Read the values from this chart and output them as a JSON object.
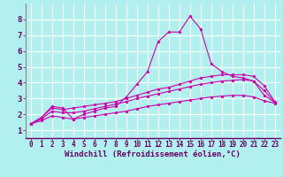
{
  "background_color": "#b2f0f0",
  "grid_color": "#ffffff",
  "line_color": "#cc00aa",
  "marker": "*",
  "xlabel": "Windchill (Refroidissement éolien,°C)",
  "xlabel_fontsize": 6.5,
  "xtick_fontsize": 5.5,
  "ytick_fontsize": 6.5,
  "xlim": [
    -0.5,
    23.5
  ],
  "ylim": [
    0.5,
    9.0
  ],
  "yticks": [
    1,
    2,
    3,
    4,
    5,
    6,
    7,
    8
  ],
  "xticks": [
    0,
    1,
    2,
    3,
    4,
    5,
    6,
    7,
    8,
    9,
    10,
    11,
    12,
    13,
    14,
    15,
    16,
    17,
    18,
    19,
    20,
    21,
    22,
    23
  ],
  "series": [
    {
      "x": [
        0,
        1,
        2,
        3,
        4,
        5,
        6,
        7,
        8,
        9,
        10,
        11,
        12,
        13,
        14,
        15,
        16,
        17,
        18,
        19,
        20,
        21,
        22,
        23
      ],
      "y": [
        1.4,
        1.8,
        2.5,
        2.4,
        1.7,
        2.0,
        2.2,
        2.4,
        2.5,
        3.1,
        3.9,
        4.7,
        6.6,
        7.2,
        7.2,
        8.2,
        7.4,
        5.2,
        4.7,
        4.4,
        4.3,
        4.1,
        3.2,
        2.75
      ]
    },
    {
      "x": [
        0,
        1,
        2,
        3,
        4,
        5,
        6,
        7,
        8,
        9,
        10,
        11,
        12,
        13,
        14,
        15,
        16,
        17,
        18,
        19,
        20,
        21,
        22,
        23
      ],
      "y": [
        1.4,
        1.8,
        2.4,
        2.3,
        2.4,
        2.5,
        2.6,
        2.7,
        2.8,
        3.0,
        3.2,
        3.4,
        3.6,
        3.7,
        3.9,
        4.1,
        4.3,
        4.4,
        4.5,
        4.5,
        4.5,
        4.4,
        3.8,
        2.8
      ]
    },
    {
      "x": [
        0,
        1,
        2,
        3,
        4,
        5,
        6,
        7,
        8,
        9,
        10,
        11,
        12,
        13,
        14,
        15,
        16,
        17,
        18,
        19,
        20,
        21,
        22,
        23
      ],
      "y": [
        1.4,
        1.7,
        2.2,
        2.1,
        2.1,
        2.2,
        2.35,
        2.5,
        2.65,
        2.8,
        3.0,
        3.15,
        3.3,
        3.45,
        3.6,
        3.75,
        3.9,
        4.0,
        4.1,
        4.15,
        4.2,
        4.1,
        3.5,
        2.75
      ]
    },
    {
      "x": [
        0,
        1,
        2,
        3,
        4,
        5,
        6,
        7,
        8,
        9,
        10,
        11,
        12,
        13,
        14,
        15,
        16,
        17,
        18,
        19,
        20,
        21,
        22,
        23
      ],
      "y": [
        1.4,
        1.6,
        1.9,
        1.8,
        1.7,
        1.8,
        1.9,
        2.0,
        2.1,
        2.2,
        2.35,
        2.5,
        2.6,
        2.7,
        2.8,
        2.9,
        3.0,
        3.1,
        3.15,
        3.2,
        3.2,
        3.1,
        2.85,
        2.7
      ]
    }
  ]
}
